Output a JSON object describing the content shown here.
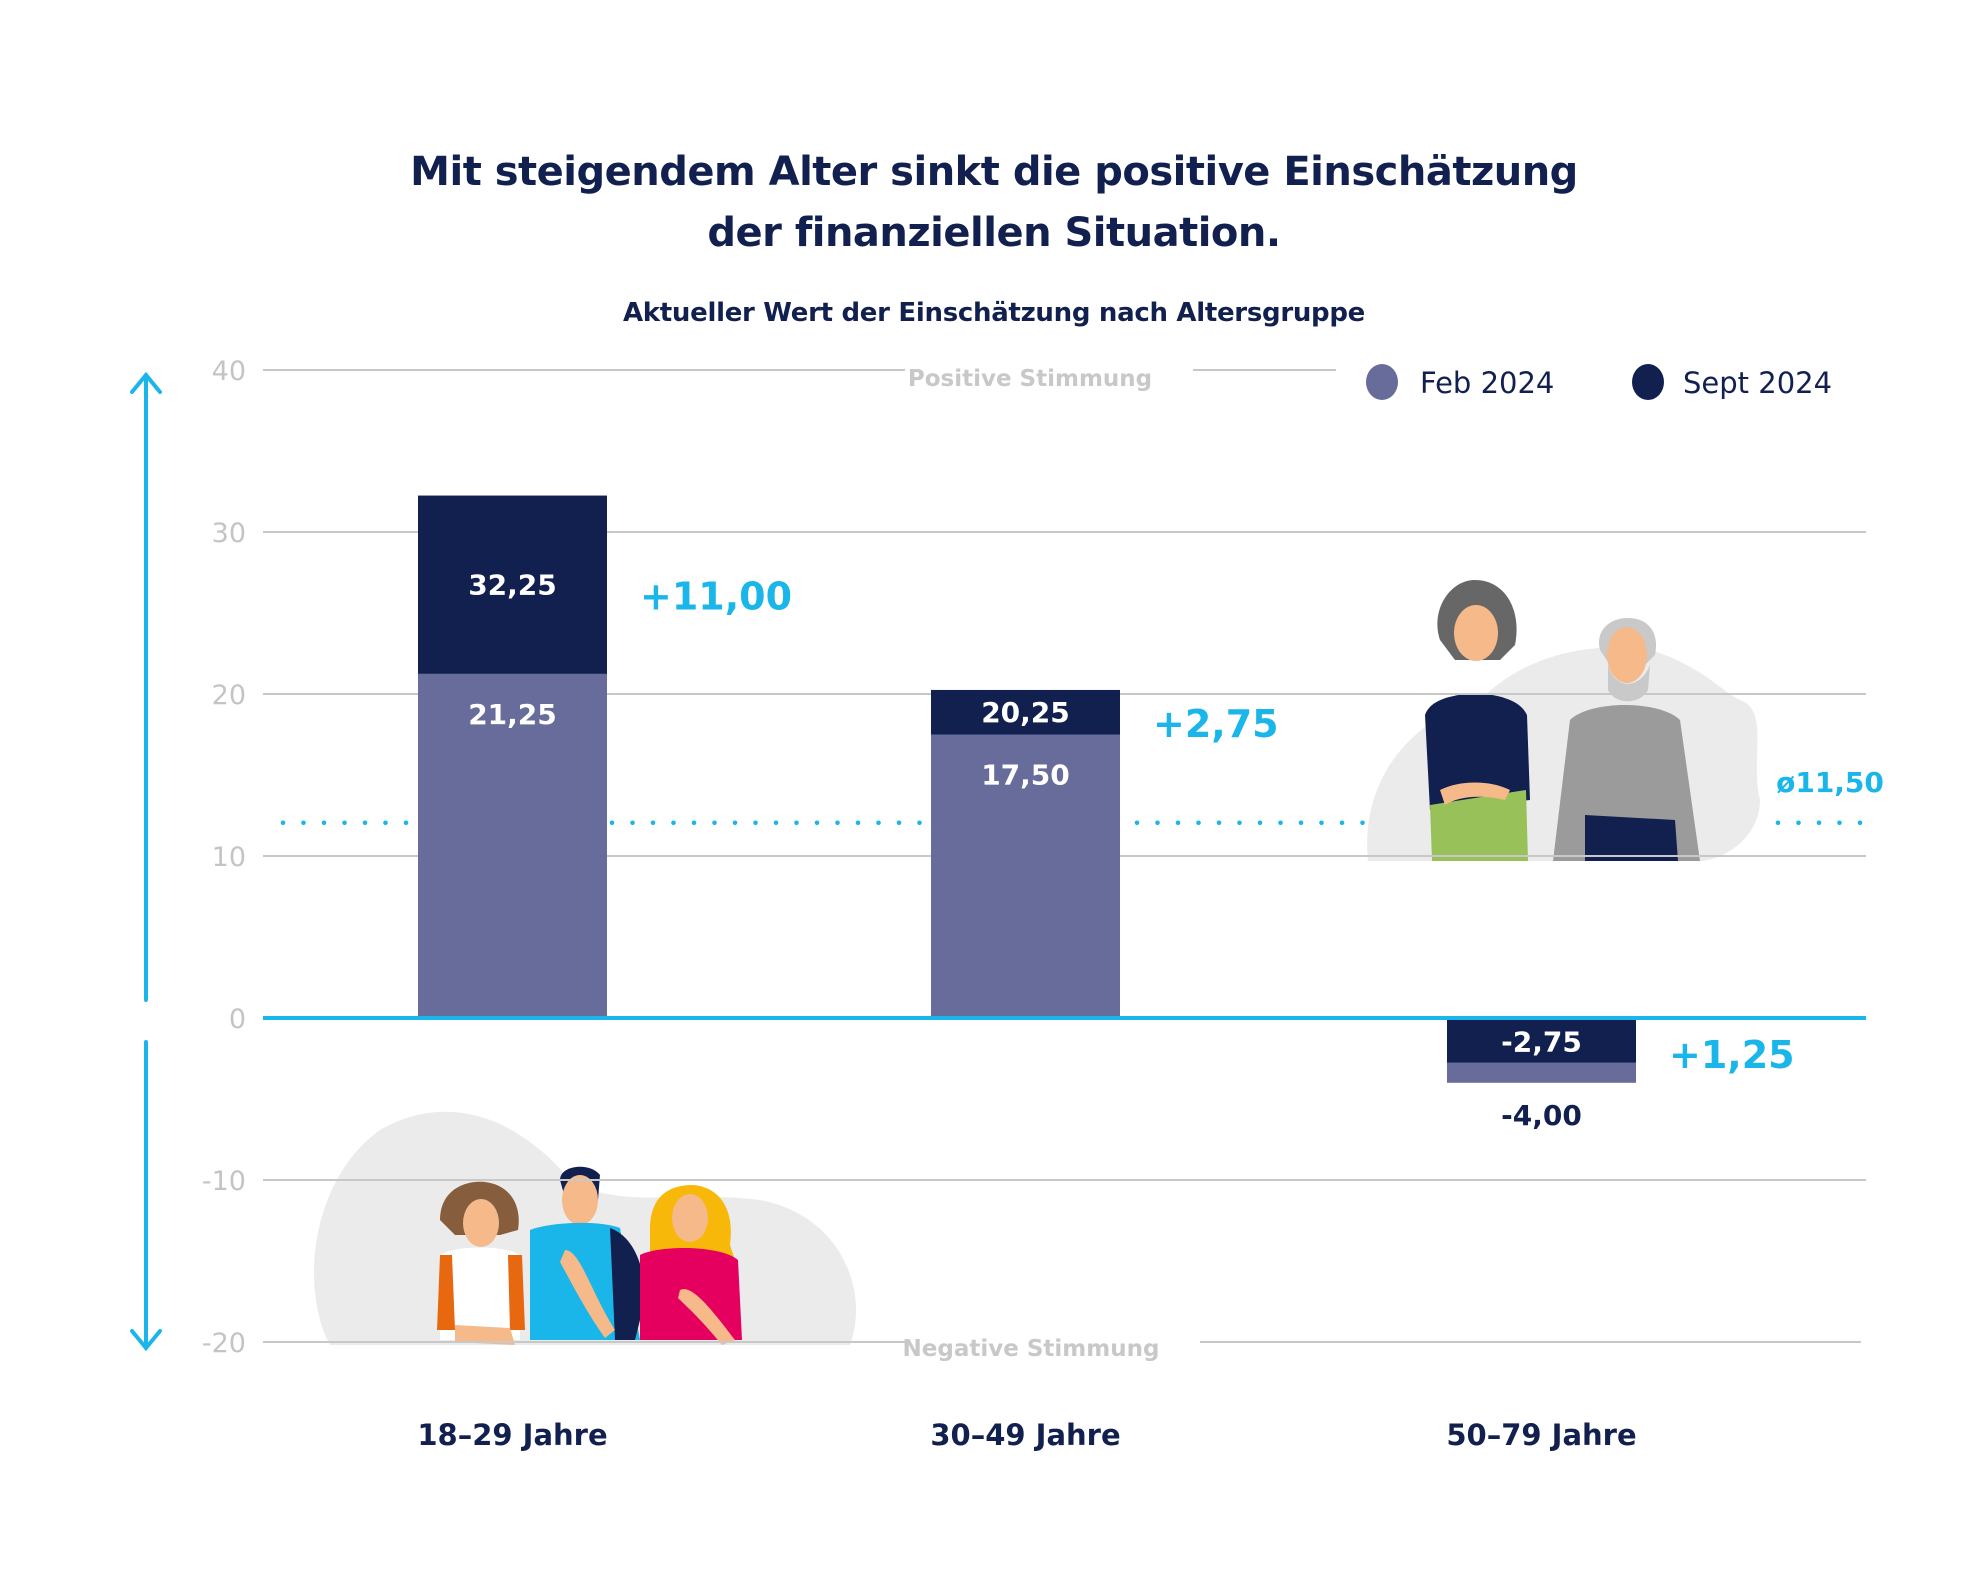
{
  "header": {
    "title_line1": "Mit steigendem Alter sinkt die positive Einschätzung",
    "title_line2": "der finanziellen Situation.",
    "subtitle": "Aktueller Wert der Einschätzung nach Altersgruppe"
  },
  "chart_data": {
    "type": "bar",
    "title": "Mit steigendem Alter sinkt die positive Einschätzung der finanziellen Situation.",
    "subtitle": "Aktueller Wert der Einschätzung nach Altersgruppe",
    "xlabel": "",
    "ylabel": "",
    "ylim": [
      -20,
      40
    ],
    "yticks": [
      40,
      30,
      20,
      10,
      0,
      -10,
      -20
    ],
    "ytick_labels": [
      "40",
      "30",
      "20",
      "10",
      "0",
      "-10",
      "-20"
    ],
    "grid": true,
    "legend_position": "top-right",
    "categories": [
      "18–29 Jahre",
      "30–49 Jahre",
      "50–79 Jahre"
    ],
    "series": [
      {
        "name": "Feb 2024",
        "color": "#676c9b",
        "values": [
          21.25,
          17.5,
          -4.0
        ],
        "labels": [
          "21,25",
          "17,50",
          "-4,00"
        ]
      },
      {
        "name": "Sept 2024",
        "color": "#12204f",
        "values": [
          32.25,
          20.25,
          -2.75
        ],
        "labels": [
          "32,25",
          "20,25",
          "-2,75"
        ]
      }
    ],
    "changes": [
      {
        "category": "18–29 Jahre",
        "value": 11.0,
        "label": "+11,00"
      },
      {
        "category": "30–49 Jahre",
        "value": 2.75,
        "label": "+2,75"
      },
      {
        "category": "50–79 Jahre",
        "value": 1.25,
        "label": "+1,25"
      }
    ],
    "average": {
      "value": 11.5,
      "label": "ø11,50",
      "color": "#1ab6ea"
    },
    "annotations": {
      "positive": "Positive Stimmung",
      "negative": "Negative Stimmung"
    },
    "accent_color": "#1ab6ea"
  }
}
